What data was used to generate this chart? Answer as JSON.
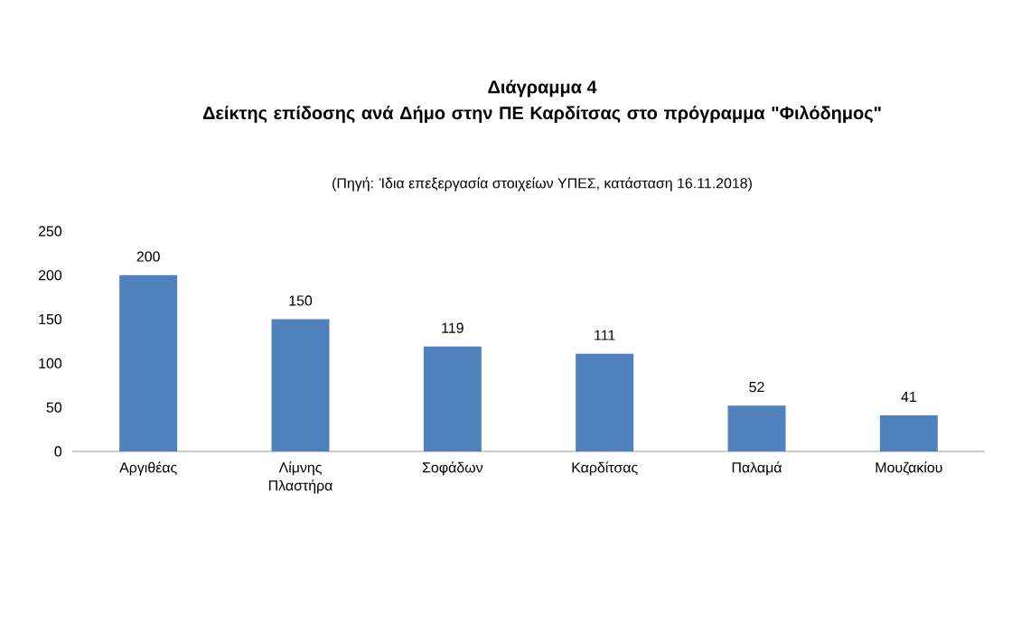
{
  "chart_data": {
    "type": "bar",
    "title": "Διάγραμμα 4",
    "subtitle": "Δείκτης επίδοσης ανά Δήμο στην ΠΕ Καρδίτσας στο πρόγραμμα \"Φιλόδημος\"",
    "annotations": [
      "(Πηγή: Ίδια επεξεργασία στοιχείων ΥΠΕΣ, κατάσταση  16.11.2018)"
    ],
    "categories": [
      "Αργιθέας",
      "Λίμνης Πλαστήρα",
      "Σοφάδων",
      "Καρδίτσας",
      "Παλαμά",
      "Μουζακίου"
    ],
    "values": [
      200,
      150,
      119,
      111,
      52,
      41
    ],
    "color": "#4f81bd",
    "ylim": [
      0,
      250
    ],
    "yticks": [
      0,
      50,
      100,
      150,
      200,
      250
    ],
    "data_labels": true
  }
}
